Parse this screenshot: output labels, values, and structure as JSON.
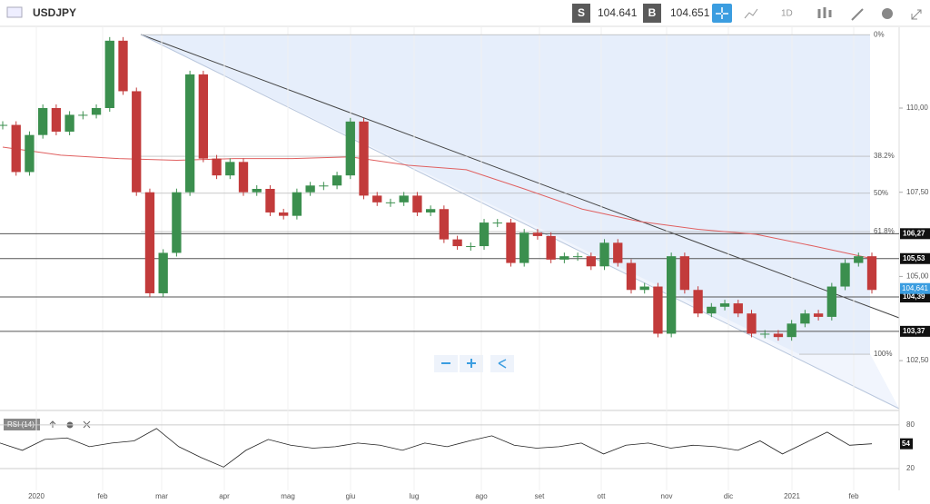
{
  "header": {
    "symbol": "USDJPY",
    "sell_label": "S",
    "sell_price": "104.641",
    "buy_label": "B",
    "buy_price": "104.651",
    "timeframe": "1D"
  },
  "chart_data": {
    "type": "candlestick",
    "categories": [
      "2020",
      "feb",
      "mar",
      "apr",
      "mag",
      "giu",
      "lug",
      "ago",
      "set",
      "ott",
      "nov",
      "dic",
      "2021",
      "feb"
    ],
    "closes": [
      109.5,
      108.1,
      109.2,
      110.0,
      109.3,
      109.8,
      109.8,
      110.0,
      112.0,
      110.5,
      107.5,
      104.5,
      105.7,
      107.5,
      111.0,
      108.5,
      108.0,
      108.4,
      107.5,
      107.6,
      106.9,
      106.8,
      107.5,
      107.7,
      107.7,
      108.0,
      109.6,
      107.4,
      107.2,
      107.2,
      107.4,
      106.9,
      107.0,
      106.1,
      105.9,
      105.9,
      106.6,
      106.6,
      105.4,
      106.3,
      106.2,
      105.5,
      105.6,
      105.6,
      105.3,
      106.0,
      105.4,
      104.6,
      104.7,
      103.3,
      105.6,
      104.6,
      103.9,
      104.1,
      104.2,
      103.9,
      103.3,
      103.3,
      103.2,
      103.6,
      103.9,
      103.8,
      104.7,
      105.4,
      105.6,
      104.6
    ],
    "ma": [
      108.84,
      108.6,
      108.5,
      108.45,
      108.5,
      108.5,
      108.55,
      108.3,
      108.17,
      107.6,
      107.0,
      106.63,
      106.4,
      106.25,
      105.9,
      105.53
    ],
    "ylim": [
      101.02,
      112.4
    ],
    "yticks": [
      {
        "value": 110,
        "label": "110,00"
      },
      {
        "value": 107.5,
        "label": "107,50"
      },
      {
        "value": 105,
        "label": "105,00"
      },
      {
        "value": 102.5,
        "label": "102,50"
      }
    ],
    "levels": [
      {
        "value": 106.27,
        "label": "106,27"
      },
      {
        "value": 105.53,
        "label": "105,53"
      },
      {
        "value": 104.39,
        "label": "104,39"
      },
      {
        "value": 103.37,
        "label": "103,37"
      }
    ],
    "fib": [
      {
        "value": 112.18,
        "label": "0%"
      },
      {
        "value": 108.57,
        "label": "38.2%"
      },
      {
        "value": 107.47,
        "label": "50%"
      },
      {
        "value": 106.33,
        "label": "61.8%"
      },
      {
        "value": 102.69,
        "label": "100%"
      }
    ],
    "last_price": {
      "value": 104.641,
      "label": "104,641"
    },
    "up_color": "#3b8f4e",
    "down_color": "#c23b3b",
    "ma_color": "#e06060"
  },
  "rsi": {
    "label": "RSI (14)",
    "values": [
      55,
      45,
      60,
      62,
      50,
      55,
      58,
      75,
      50,
      35,
      22,
      45,
      60,
      52,
      48,
      50,
      55,
      52,
      45,
      55,
      50,
      58,
      65,
      52,
      48,
      50,
      55,
      40,
      52,
      55,
      48,
      52,
      50,
      45,
      58,
      40,
      55,
      70,
      52,
      54
    ],
    "ylim": [
      -10,
      96
    ],
    "yticks": [
      80,
      20
    ],
    "last": 54
  }
}
